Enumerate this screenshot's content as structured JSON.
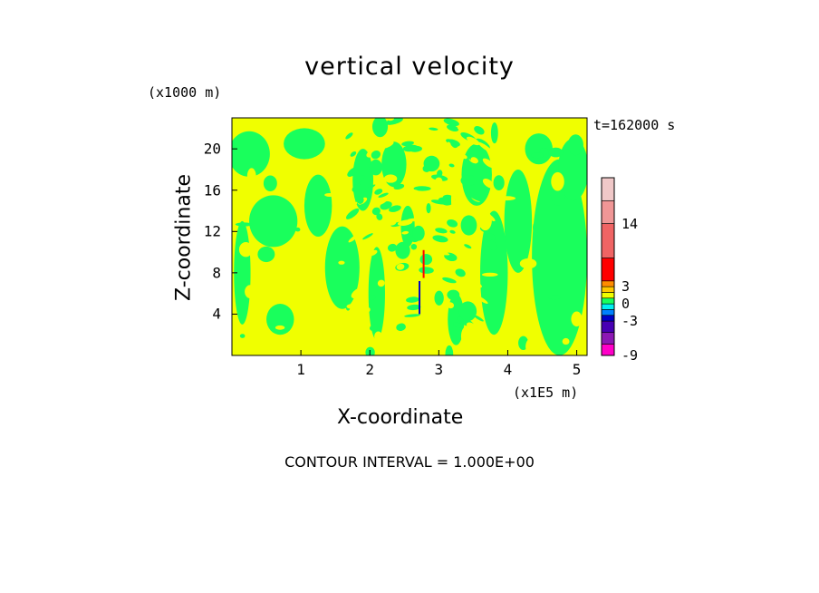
{
  "chart_data": {
    "type": "heatmap",
    "title": "vertical velocity",
    "xlabel": "X-coordinate",
    "ylabel": "Z-coordinate",
    "x_scale_label": "(x1E5 m)",
    "z_scale_label": "(x1000 m)",
    "time_label": "t=162000 s",
    "contour_interval_label": "CONTOUR INTERVAL = 1.000E+00",
    "xlim": [
      0,
      5.15
    ],
    "ylim": [
      0,
      23
    ],
    "x_ticks": [
      1,
      2,
      3,
      4,
      5
    ],
    "y_ticks": [
      4,
      8,
      12,
      16,
      20
    ],
    "colorbar": {
      "tick_labels": [
        "14",
        "3",
        "0",
        "-3",
        "-9"
      ],
      "tick_values": [
        14,
        3,
        0,
        -3,
        -9
      ],
      "bands": [
        {
          "from": -9,
          "to": -7,
          "color": "#ff00c8"
        },
        {
          "from": -7,
          "to": -5,
          "color": "#8c18b4"
        },
        {
          "from": -5,
          "to": -3,
          "color": "#4800b4"
        },
        {
          "from": -3,
          "to": -2,
          "color": "#0000c8"
        },
        {
          "from": -2,
          "to": -1,
          "color": "#0080ff"
        },
        {
          "from": -1,
          "to": 0,
          "color": "#00f0f0"
        },
        {
          "from": 0,
          "to": 1,
          "color": "#19ff5c"
        },
        {
          "from": 1,
          "to": 2,
          "color": "#f0ff00"
        },
        {
          "from": 2,
          "to": 3,
          "color": "#ffc800"
        },
        {
          "from": 3,
          "to": 4,
          "color": "#ff8c00"
        },
        {
          "from": 4,
          "to": 8,
          "color": "#ff0000"
        },
        {
          "from": 8,
          "to": 14,
          "color": "#f06464"
        },
        {
          "from": 14,
          "to": 18,
          "color": "#f09696"
        },
        {
          "from": 18,
          "to": 22,
          "color": "#f0c8c8"
        }
      ]
    },
    "field_colors": {
      "positive": "#f0ff00",
      "near_zero": "#19ff5c"
    },
    "features": [
      {
        "x": 2.72,
        "z_from": 4.0,
        "z_to": 7.2,
        "value": -3,
        "color": "#0000c8"
      },
      {
        "x": 2.78,
        "z_from": 7.5,
        "z_to": 10.2,
        "value": 5,
        "color": "#ff0000"
      }
    ]
  }
}
